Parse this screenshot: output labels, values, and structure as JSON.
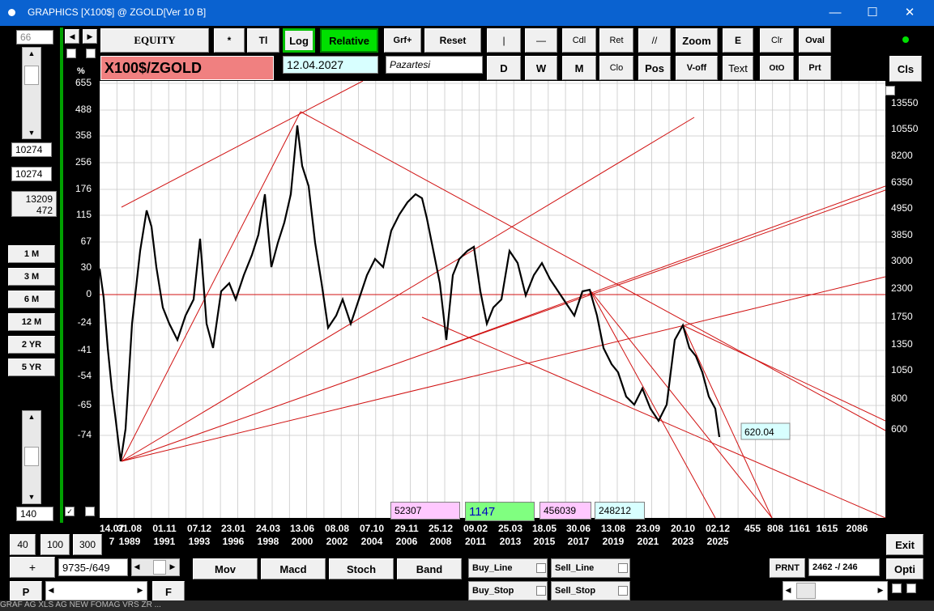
{
  "window": {
    "title": "GRAPHICS  [X100$] @ ZGOLD[Ver 10 B]",
    "minimize": "—",
    "maximize": "☐",
    "close": "✕"
  },
  "left": {
    "top_value": "66",
    "box1": "10274",
    "box2": "10274",
    "box3_line1": "13209",
    "box3_line2": "472",
    "periods": [
      "1 M",
      "3 M",
      "6 M",
      "12 M",
      "2 YR",
      "5 YR"
    ],
    "bottom_value": "140"
  },
  "toolbar": {
    "row1": [
      "EQUITY",
      "*",
      "Tl",
      "Log",
      "Relative",
      "Grf+",
      "Reset",
      "|",
      "—",
      "Cdl",
      "Ret",
      "//",
      "Zoom",
      "E",
      "Clr",
      "Oval"
    ],
    "row2": [
      "D",
      "W",
      "M",
      "Clo",
      "Pos",
      "V-off",
      "Text",
      "OtO",
      "Prt"
    ],
    "symbol": "X100$/ZGOLD",
    "date": "12.04.2027",
    "day": "Pazartesi",
    "cls": "Cls",
    "percent_label": "%"
  },
  "chart": {
    "y_left": [
      "655",
      "488",
      "358",
      "256",
      "176",
      "115",
      "67",
      "30",
      "0",
      "-24",
      "-41",
      "-54",
      "-65",
      "-74"
    ],
    "y_right": [
      "13550",
      "10550",
      "8200",
      "6350",
      "4950",
      "3850",
      "3000",
      "2300",
      "1750",
      "1350",
      "1050",
      "800",
      "600"
    ],
    "x_dates": [
      [
        "14.07",
        "7"
      ],
      [
        "31.08",
        "1989"
      ],
      [
        "01.11",
        "1991"
      ],
      [
        "07.12",
        "1993"
      ],
      [
        "23.01",
        "1996"
      ],
      [
        "24.03",
        "1998"
      ],
      [
        "13.06",
        "2000"
      ],
      [
        "08.08",
        "2002"
      ],
      [
        "07.10",
        "2004"
      ],
      [
        "29.11",
        "2006"
      ],
      [
        "25.12",
        "2008"
      ],
      [
        "09.02",
        "2011"
      ],
      [
        "25.03",
        "2013"
      ],
      [
        "18.05",
        "2015"
      ],
      [
        "30.06",
        "2017"
      ],
      [
        "13.08",
        "2019"
      ],
      [
        "23.09",
        "2021"
      ],
      [
        "20.10",
        "2023"
      ],
      [
        "02.12",
        "2025"
      ]
    ],
    "x_extra": [
      "455",
      "808",
      "1161",
      "1615",
      "2086"
    ],
    "last_value": "620.04",
    "info_boxes": [
      "52307",
      "1147",
      "456039",
      "248212"
    ]
  },
  "bottom": {
    "zoom_buttons": [
      "40",
      "100",
      "300"
    ],
    "plus": "+",
    "counter": "9735-/649",
    "p": "P",
    "f": "F",
    "indicators": [
      "Mov",
      "Macd",
      "Stoch",
      "Band"
    ],
    "checks": [
      "Buy_Line",
      "Sell_Line",
      "Buy_Stop",
      "Sell_Stop"
    ],
    "prnt": "PRNT",
    "range": "2462 -/ 246",
    "exit": "Exit",
    "opti": "Opti"
  },
  "taskbar": "GRAF AG   XLS AG  NEW   FOMAG   VRS   ZR   ...",
  "colors": {
    "accent_green": "#00e000",
    "symbol_bg": "#f08080",
    "date_bg": "#d8ffff",
    "pink": "#ffc8ff",
    "green_box": "#80ff80"
  }
}
